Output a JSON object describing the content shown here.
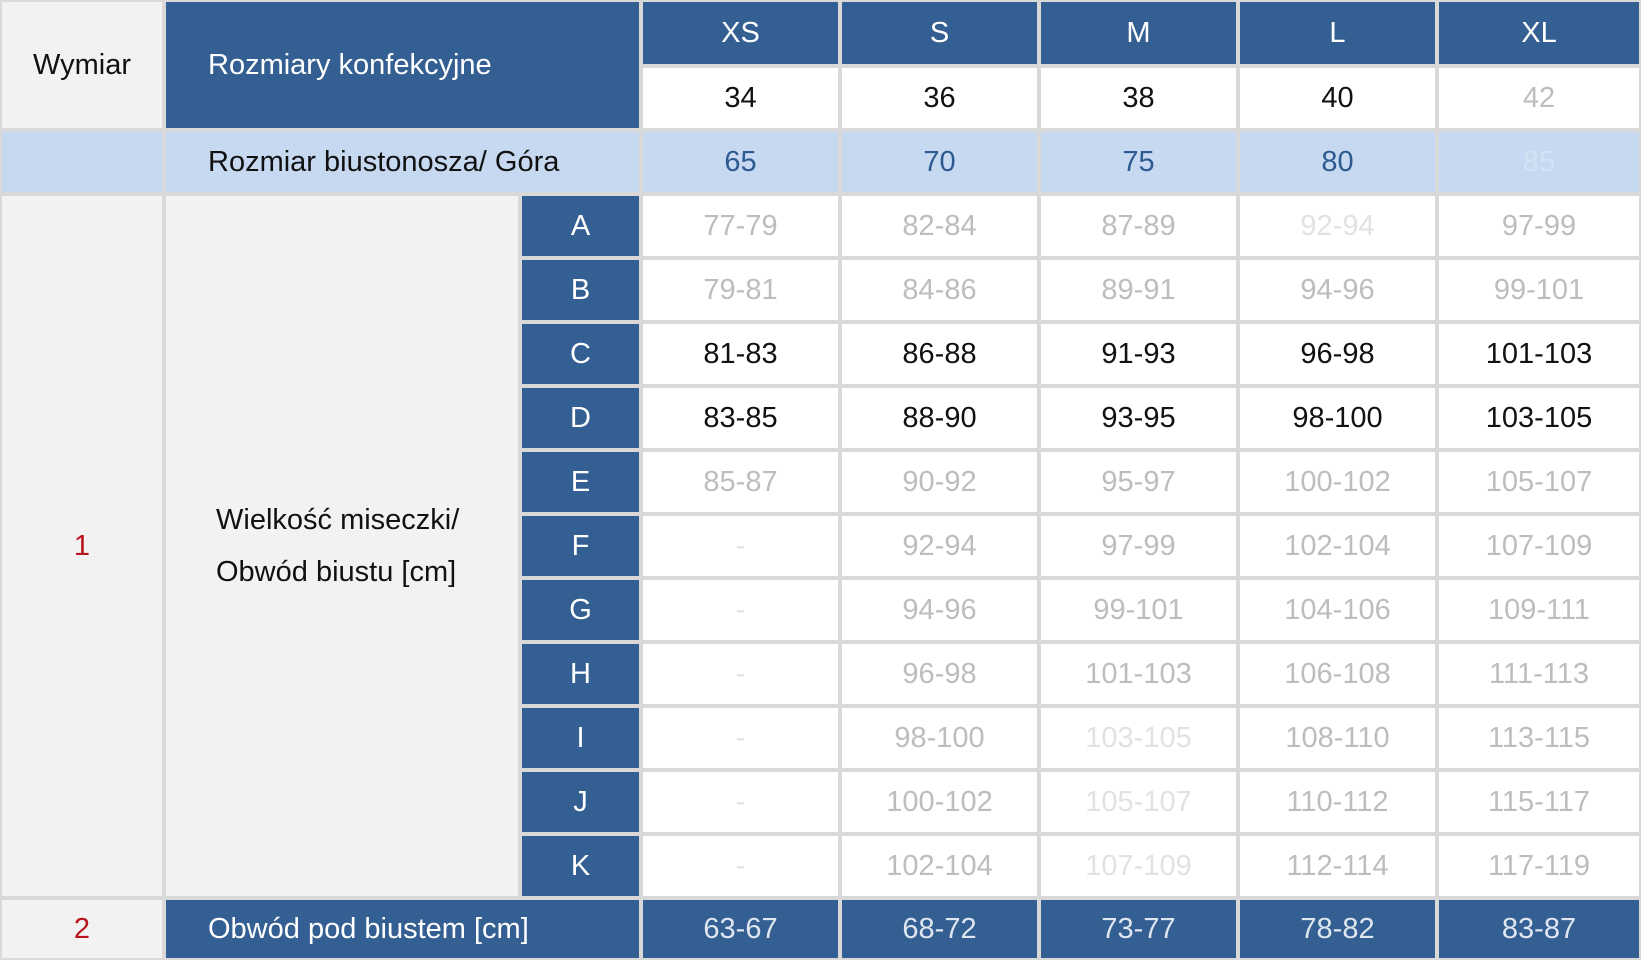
{
  "header": {
    "wymiar": "Wymiar",
    "rozmiary_label": "Rozmiary konfekcyjne",
    "sizes": [
      "XS",
      "S",
      "M",
      "L",
      "XL"
    ],
    "eu_sizes": [
      "34",
      "36",
      "38",
      "40",
      "42"
    ]
  },
  "bra_row": {
    "label": "Rozmiar biustonosza/ Góra",
    "values": [
      "65",
      "70",
      "75",
      "80",
      "85"
    ]
  },
  "cup_section": {
    "number": "1",
    "label_line1": "Wielkość miseczki/",
    "label_line2": "Obwód biustu [cm]",
    "rows": [
      {
        "cup": "A",
        "values": [
          "77-79",
          "82-84",
          "87-89",
          "92-94",
          "97-99"
        ]
      },
      {
        "cup": "B",
        "values": [
          "79-81",
          "84-86",
          "89-91",
          "94-96",
          "99-101"
        ]
      },
      {
        "cup": "C",
        "values": [
          "81-83",
          "86-88",
          "91-93",
          "96-98",
          "101-103"
        ]
      },
      {
        "cup": "D",
        "values": [
          "83-85",
          "88-90",
          "93-95",
          "98-100",
          "103-105"
        ]
      },
      {
        "cup": "E",
        "values": [
          "85-87",
          "90-92",
          "95-97",
          "100-102",
          "105-107"
        ]
      },
      {
        "cup": "F",
        "values": [
          "-",
          "92-94",
          "97-99",
          "102-104",
          "107-109"
        ]
      },
      {
        "cup": "G",
        "values": [
          "-",
          "94-96",
          "99-101",
          "104-106",
          "109-111"
        ]
      },
      {
        "cup": "H",
        "values": [
          "-",
          "96-98",
          "101-103",
          "106-108",
          "111-113"
        ]
      },
      {
        "cup": "I",
        "values": [
          "-",
          "98-100",
          "103-105",
          "108-110",
          "113-115"
        ]
      },
      {
        "cup": "J",
        "values": [
          "-",
          "100-102",
          "105-107",
          "110-112",
          "115-117"
        ]
      },
      {
        "cup": "K",
        "values": [
          "-",
          "102-104",
          "107-109",
          "112-114",
          "117-119"
        ]
      }
    ]
  },
  "underbust": {
    "number": "2",
    "label": "Obwód pod biustem [cm]",
    "values": [
      "63-67",
      "68-72",
      "73-77",
      "78-82",
      "83-87"
    ]
  },
  "colors": {
    "header_blue": "#345f92",
    "light_blue": "#c6d9f1",
    "accent_red": "#b8141b",
    "gray_bg": "#f2f2f2",
    "border": "#d9d9d9"
  }
}
